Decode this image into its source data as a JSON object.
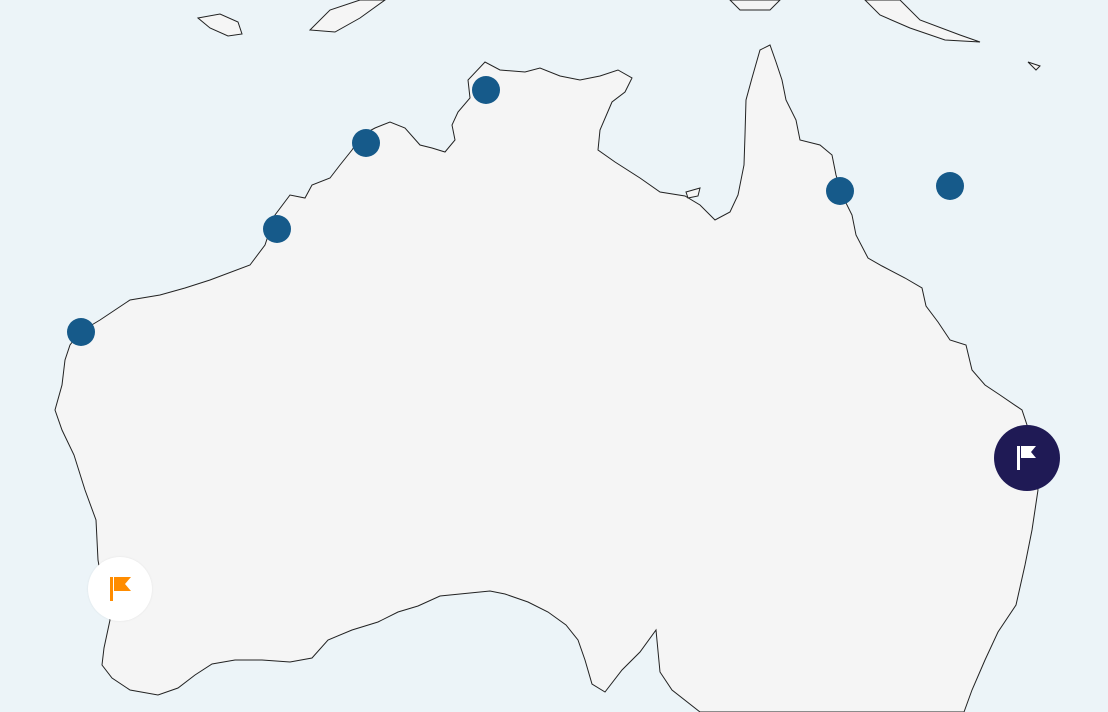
{
  "map": {
    "region": "Australia",
    "colors": {
      "water": "#ecf4f8",
      "land": "#f5f5f5",
      "coastline": "#222222",
      "point_marker": "#165a8a",
      "selected_flag_marker_bg": "#1f1a55",
      "selected_flag_icon": "#ffffff",
      "flag_marker_bg": "#ffffff",
      "flag_icon": "#ff8c00"
    },
    "point_markers": [
      {
        "id": "p1",
        "icon": "circle"
      },
      {
        "id": "p2",
        "icon": "circle"
      },
      {
        "id": "p3",
        "icon": "circle"
      },
      {
        "id": "p4",
        "icon": "circle"
      },
      {
        "id": "p5",
        "icon": "circle"
      },
      {
        "id": "p6",
        "icon": "circle"
      }
    ],
    "flag_markers": [
      {
        "id": "f1",
        "icon": "flag-icon",
        "state": "selected"
      },
      {
        "id": "f2",
        "icon": "flag-icon",
        "state": "default"
      }
    ]
  }
}
